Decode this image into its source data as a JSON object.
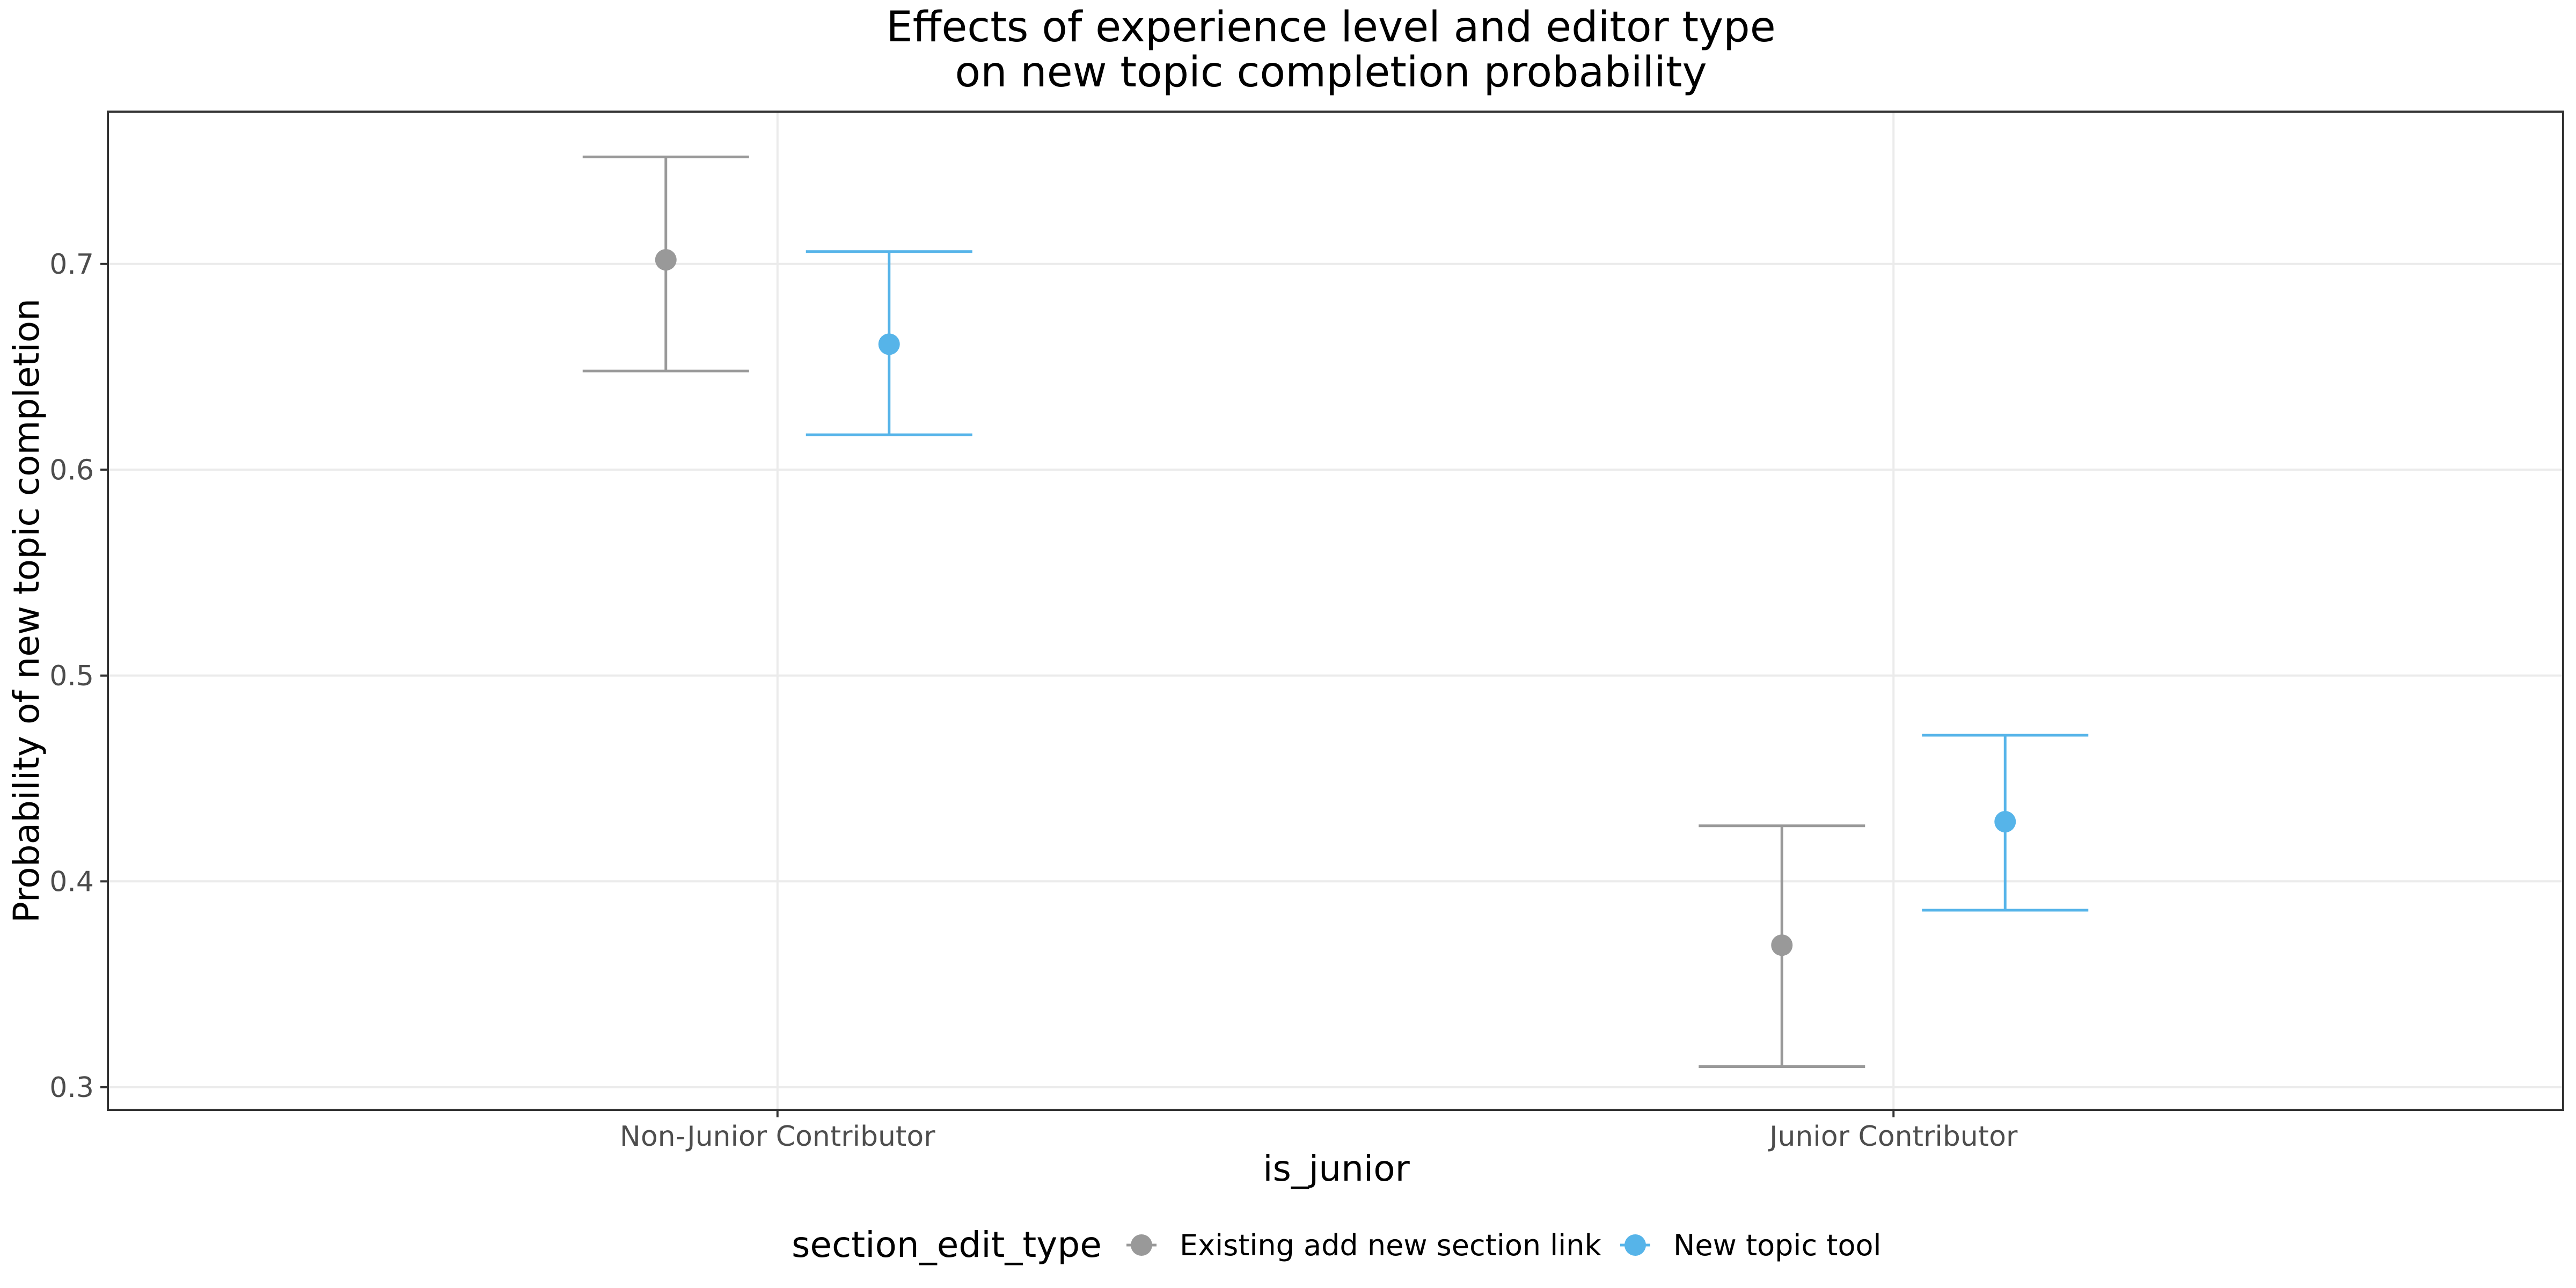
{
  "chart_data": {
    "type": "scatter",
    "title_line1": "Effects of experience level and editor type",
    "title_line2": "on new topic completion probability",
    "xlabel": "is_junior",
    "ylabel": "Probability of new topic completion",
    "categories": [
      "Non-Junior Contributor",
      "Junior Contributor"
    ],
    "ylim": [
      0.289,
      0.774
    ],
    "yticks": [
      0.3,
      0.4,
      0.5,
      0.6,
      0.7
    ],
    "ytick_labels": [
      "0.3",
      "0.4",
      "0.5",
      "0.6",
      "0.7"
    ],
    "grid": true,
    "legend": {
      "title": "section_edit_type",
      "placement": "bottom"
    },
    "series": [
      {
        "name": "Existing add new section link",
        "color": "#999999",
        "values": [
          0.702,
          0.369
        ],
        "lower": [
          0.648,
          0.31
        ],
        "upper": [
          0.752,
          0.427
        ]
      },
      {
        "name": "New topic tool",
        "color": "#56B4E9",
        "values": [
          0.661,
          0.429
        ],
        "lower": [
          0.617,
          0.386
        ],
        "upper": [
          0.706,
          0.471
        ]
      }
    ]
  }
}
